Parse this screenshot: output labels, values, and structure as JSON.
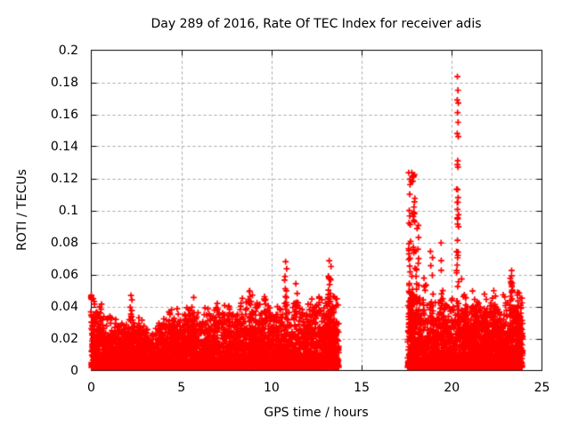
{
  "chart_data": {
    "type": "scatter",
    "title": "Day 289 of 2016, Rate Of TEC Index for receiver adis",
    "xlabel": "GPS time / hours",
    "ylabel": "ROTI / TECUs",
    "xlim": [
      0,
      25
    ],
    "ylim": [
      0,
      0.2
    ],
    "xticks": {
      "values": [
        0,
        5,
        10,
        15,
        20,
        25
      ],
      "labels": [
        "0",
        "5",
        "10",
        "15",
        "20",
        "25"
      ]
    },
    "yticks": {
      "values": [
        0,
        0.02,
        0.04,
        0.06,
        0.08,
        0.1,
        0.12,
        0.14,
        0.16,
        0.18,
        0.2
      ],
      "labels": [
        "0",
        "0.02",
        "0.04",
        "0.06",
        "0.08",
        "0.1",
        "0.12",
        "0.14",
        "0.16",
        "0.18",
        "0.2"
      ]
    },
    "grid": "dashed",
    "legend": "none",
    "marker": {
      "shape": "plus",
      "color": "#ff0000"
    },
    "series_name": "ROTI",
    "points_model": {
      "seed": 289,
      "description": "Two dense data blocks of ROTI values with a data gap between 13.7 and 17.6 hours; baseline noise 0.002-0.03 TECU with grassy peaks to ~0.05 and large spikes near 17.8 h (to 0.123), 20.3 h (to 0.183) and 23.3 h (to 0.063).",
      "clusters": [
        {
          "name": "morning-block",
          "x_start": 0.0,
          "x_end": 13.73,
          "count": 5200,
          "bursts": 80,
          "y_floor": 0.002,
          "skew": 2.8,
          "envelope": [
            [
              0,
              0.03
            ],
            [
              0.6,
              0.032
            ],
            [
              1.2,
              0.023
            ],
            [
              2,
              0.027
            ],
            [
              3,
              0.021
            ],
            [
              3.6,
              0.024
            ],
            [
              4.2,
              0.029
            ],
            [
              4.7,
              0.025
            ],
            [
              5.2,
              0.031
            ],
            [
              6,
              0.033
            ],
            [
              6.8,
              0.03
            ],
            [
              7.5,
              0.034
            ],
            [
              8,
              0.032
            ],
            [
              8.7,
              0.035
            ],
            [
              9.3,
              0.033
            ],
            [
              10,
              0.036
            ],
            [
              10.6,
              0.034
            ],
            [
              11.2,
              0.037
            ],
            [
              11.8,
              0.035
            ],
            [
              12.4,
              0.038
            ],
            [
              13,
              0.036
            ],
            [
              13.5,
              0.04
            ],
            [
              13.73,
              0.036
            ]
          ]
        },
        {
          "name": "evening-block",
          "x_start": 17.55,
          "x_end": 23.93,
          "count": 2700,
          "bursts": 45,
          "y_floor": 0.002,
          "skew": 2.8,
          "envelope": [
            [
              17.55,
              0.036
            ],
            [
              18.2,
              0.038
            ],
            [
              19,
              0.034
            ],
            [
              20,
              0.036
            ],
            [
              21,
              0.034
            ],
            [
              22,
              0.036
            ],
            [
              23,
              0.038
            ],
            [
              23.5,
              0.04
            ],
            [
              23.93,
              0.037
            ]
          ]
        }
      ],
      "spike_columns": [
        {
          "x": 0.08,
          "spread": 0.12,
          "count": 16,
          "y_min": 0.028,
          "y_max": 0.051,
          "power": 1.3
        },
        {
          "x": 2.18,
          "spread": 0.08,
          "count": 9,
          "y_min": 0.03,
          "y_max": 0.048,
          "power": 1.2
        },
        {
          "x": 5.3,
          "spread": 0.1,
          "count": 6,
          "y_min": 0.03,
          "y_max": 0.042,
          "power": 1.2
        },
        {
          "x": 7.0,
          "spread": 0.1,
          "count": 6,
          "y_min": 0.03,
          "y_max": 0.044,
          "power": 1.2
        },
        {
          "x": 8.3,
          "spread": 0.1,
          "count": 6,
          "y_min": 0.032,
          "y_max": 0.047,
          "power": 1.2
        },
        {
          "x": 8.75,
          "spread": 0.08,
          "count": 5,
          "y_min": 0.034,
          "y_max": 0.05,
          "power": 1.2
        },
        {
          "x": 10.78,
          "spread": 0.06,
          "count": 8,
          "y_min": 0.04,
          "y_max": 0.061,
          "power": 1.2
        },
        {
          "x": 11.4,
          "spread": 0.1,
          "count": 7,
          "y_min": 0.035,
          "y_max": 0.055,
          "power": 1.2
        },
        {
          "x": 12.55,
          "spread": 0.1,
          "count": 7,
          "y_min": 0.035,
          "y_max": 0.052,
          "power": 1.2
        },
        {
          "x": 13.22,
          "spread": 0.08,
          "count": 9,
          "y_min": 0.04,
          "y_max": 0.06,
          "power": 1.2
        },
        {
          "x": 17.78,
          "spread": 0.18,
          "count": 70,
          "y_min": 0.028,
          "y_max": 0.125,
          "power": 1.6
        },
        {
          "x": 18.08,
          "spread": 0.1,
          "count": 25,
          "y_min": 0.03,
          "y_max": 0.092,
          "power": 1.4
        },
        {
          "x": 18.5,
          "spread": 0.08,
          "count": 8,
          "y_min": 0.03,
          "y_max": 0.06,
          "power": 1.2
        },
        {
          "x": 18.88,
          "spread": 0.09,
          "count": 12,
          "y_min": 0.03,
          "y_max": 0.076,
          "power": 1.3
        },
        {
          "x": 19.45,
          "spread": 0.09,
          "count": 10,
          "y_min": 0.032,
          "y_max": 0.08,
          "power": 1.3
        },
        {
          "x": 20.32,
          "spread": 0.06,
          "count": 22,
          "y_min": 0.04,
          "y_max": 0.115,
          "power": 1.2
        },
        {
          "x": 20.6,
          "spread": 0.1,
          "count": 9,
          "y_min": 0.032,
          "y_max": 0.07,
          "power": 1.2
        },
        {
          "x": 21.1,
          "spread": 0.1,
          "count": 7,
          "y_min": 0.03,
          "y_max": 0.052,
          "power": 1.2
        },
        {
          "x": 22.35,
          "spread": 0.1,
          "count": 8,
          "y_min": 0.032,
          "y_max": 0.056,
          "power": 1.2
        },
        {
          "x": 23.28,
          "spread": 0.07,
          "count": 11,
          "y_min": 0.042,
          "y_max": 0.063,
          "power": 1.1
        },
        {
          "x": 23.8,
          "spread": 0.09,
          "count": 7,
          "y_min": 0.032,
          "y_max": 0.052,
          "power": 1.2
        }
      ],
      "outliers": [
        [
          10.78,
          0.068
        ],
        [
          10.84,
          0.0635
        ],
        [
          13.2,
          0.0685
        ],
        [
          13.3,
          0.065
        ],
        [
          17.78,
          0.1235
        ],
        [
          17.82,
          0.121
        ],
        [
          17.76,
          0.118
        ],
        [
          20.31,
          0.1835
        ],
        [
          20.34,
          0.175
        ],
        [
          20.3,
          0.169
        ],
        [
          20.36,
          0.167
        ],
        [
          20.32,
          0.161
        ],
        [
          20.35,
          0.155
        ],
        [
          20.3,
          0.148
        ],
        [
          20.36,
          0.146
        ],
        [
          20.33,
          0.131
        ],
        [
          20.31,
          0.1285
        ],
        [
          20.34,
          0.127
        ],
        [
          20.32,
          0.113
        ],
        [
          20.35,
          0.108
        ],
        [
          20.3,
          0.105
        ]
      ]
    }
  },
  "colors": {
    "marker": "#ff0000",
    "grid": "#a6a6a6",
    "axis": "#000000",
    "background": "#ffffff",
    "text": "#000000"
  }
}
